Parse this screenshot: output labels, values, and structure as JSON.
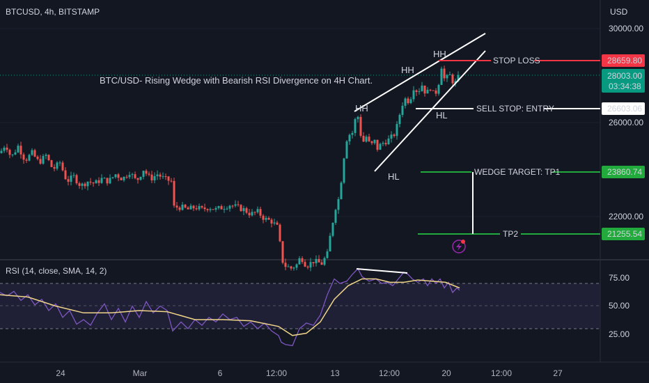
{
  "header": {
    "symbol": "BTCUSD, 4h, BITSTAMP",
    "currency": "USD"
  },
  "colors": {
    "background": "#131722",
    "up": "#26a69a",
    "down": "#ef5350",
    "rsi_line": "#7e57c2",
    "rsi_sma": "#f0d58a",
    "stop_loss": "#f23645",
    "target": "#22ab3c",
    "entry": "#ffffff",
    "last_price": "#089981",
    "axis_text": "#b2b5be"
  },
  "chart_data": [
    {
      "type": "candlestick",
      "title": "BTC/USD- Rising Wedge with Bearish RSI Divergence on 4H Chart.",
      "y_ticks": [
        "30000.00",
        "26000.00",
        "22000.00"
      ],
      "x_ticks": [
        "24",
        "Mar",
        "6",
        "12:00",
        "13",
        "12:00",
        "20",
        "12:00",
        "27"
      ],
      "close_path": [
        [
          0,
          24700
        ],
        [
          8,
          25100
        ],
        [
          16,
          24500
        ],
        [
          26,
          25000
        ],
        [
          36,
          24400
        ],
        [
          46,
          24700
        ],
        [
          56,
          24300
        ],
        [
          66,
          24600
        ],
        [
          76,
          24000
        ],
        [
          86,
          24300
        ],
        [
          96,
          23500
        ],
        [
          106,
          23700
        ],
        [
          116,
          23300
        ],
        [
          126,
          23500
        ],
        [
          136,
          23400
        ],
        [
          146,
          23600
        ],
        [
          156,
          23500
        ],
        [
          166,
          23800
        ],
        [
          176,
          23600
        ],
        [
          186,
          23900
        ],
        [
          196,
          23500
        ],
        [
          206,
          24000
        ],
        [
          216,
          23600
        ],
        [
          226,
          23800
        ],
        [
          236,
          23600
        ],
        [
          246,
          23500
        ],
        [
          250,
          22400
        ],
        [
          260,
          22400
        ],
        [
          270,
          22300
        ],
        [
          280,
          22400
        ],
        [
          290,
          22300
        ],
        [
          300,
          22400
        ],
        [
          310,
          22300
        ],
        [
          320,
          22400
        ],
        [
          330,
          22500
        ],
        [
          340,
          22400
        ],
        [
          350,
          22300
        ],
        [
          360,
          22100
        ],
        [
          370,
          22200
        ],
        [
          380,
          21900
        ],
        [
          390,
          21800
        ],
        [
          400,
          21500
        ],
        [
          404,
          20200
        ],
        [
          410,
          19900
        ],
        [
          418,
          19800
        ],
        [
          426,
          19950
        ],
        [
          432,
          20300
        ],
        [
          440,
          19900
        ],
        [
          450,
          20100
        ],
        [
          462,
          20000
        ],
        [
          470,
          20400
        ],
        [
          476,
          21500
        ],
        [
          482,
          22400
        ],
        [
          488,
          22900
        ],
        [
          492,
          24200
        ],
        [
          498,
          25300
        ],
        [
          502,
          25500
        ],
        [
          508,
          25600
        ],
        [
          512,
          26600
        ],
        [
          516,
          25900
        ],
        [
          520,
          25100
        ],
        [
          526,
          25400
        ],
        [
          532,
          25000
        ],
        [
          538,
          25200
        ],
        [
          542,
          24900
        ],
        [
          548,
          25100
        ],
        [
          554,
          25200
        ],
        [
          560,
          25300
        ],
        [
          566,
          25500
        ],
        [
          572,
          26000
        ],
        [
          576,
          26700
        ],
        [
          582,
          27000
        ],
        [
          588,
          26900
        ],
        [
          594,
          27500
        ],
        [
          600,
          27300
        ],
        [
          606,
          27600
        ],
        [
          612,
          27200
        ],
        [
          618,
          27500
        ],
        [
          624,
          27100
        ],
        [
          630,
          27700
        ],
        [
          634,
          28400
        ],
        [
          640,
          27600
        ],
        [
          644,
          28200
        ],
        [
          648,
          27800
        ],
        [
          654,
          27700
        ],
        [
          660,
          28003
        ]
      ],
      "overlay_labels": {
        "hh": "HH",
        "hl": "HL",
        "stop_loss": "STOP LOSS",
        "entry": "SELL STOP: ENTRY",
        "tp1": "WEDGE TARGET: TP1",
        "tp2": "TP2"
      },
      "levels": {
        "stop_loss": {
          "value": 28659.8,
          "label": "28659.80"
        },
        "entry": {
          "value": 26603.06,
          "label": "26603.06"
        },
        "tp1": {
          "value": 23860.74,
          "label": "23860.74"
        },
        "tp2": {
          "value": 21255.54,
          "label": "21255.54"
        },
        "last": {
          "value": 28003,
          "label": "28003.00",
          "countdown": "03:34:38"
        }
      }
    },
    {
      "type": "line",
      "title": "RSI (14, close, SMA, 14, 2)",
      "y_ticks": [
        "75.00",
        "50.00",
        "25.00"
      ],
      "ylim": [
        10,
        90
      ],
      "bands": [
        30,
        50,
        70
      ],
      "series": [
        {
          "values": [
            [
              0,
              62
            ],
            [
              10,
              59
            ],
            [
              20,
              63
            ],
            [
              30,
              55
            ],
            [
              40,
              60
            ],
            [
              50,
              51
            ],
            [
              60,
              56
            ],
            [
              70,
              46
            ],
            [
              80,
              52
            ],
            [
              90,
              40
            ],
            [
              100,
              46
            ],
            [
              110,
              34
            ],
            [
              120,
              38
            ],
            [
              130,
              33
            ],
            [
              140,
              44
            ],
            [
              150,
              52
            ],
            [
              160,
              38
            ],
            [
              170,
              48
            ],
            [
              180,
              36
            ],
            [
              190,
              50
            ],
            [
              200,
              40
            ],
            [
              210,
              54
            ],
            [
              220,
              44
            ],
            [
              230,
              50
            ],
            [
              240,
              46
            ],
            [
              248,
              28
            ],
            [
              260,
              36
            ],
            [
              270,
              30
            ],
            [
              280,
              38
            ],
            [
              290,
              33
            ],
            [
              300,
              40
            ],
            [
              310,
              36
            ],
            [
              320,
              43
            ],
            [
              330,
              38
            ],
            [
              340,
              40
            ],
            [
              350,
              32
            ],
            [
              360,
              36
            ],
            [
              370,
              30
            ],
            [
              380,
              35
            ],
            [
              390,
              28
            ],
            [
              400,
              24
            ],
            [
              404,
              18
            ],
            [
              410,
              16
            ],
            [
              420,
              15
            ],
            [
              430,
              30
            ],
            [
              440,
              35
            ],
            [
              450,
              33
            ],
            [
              460,
              42
            ],
            [
              470,
              60
            ],
            [
              480,
              74
            ],
            [
              488,
              70
            ],
            [
              498,
              72
            ],
            [
              506,
              78
            ],
            [
              514,
              83
            ],
            [
              520,
              76
            ],
            [
              530,
              72
            ],
            [
              540,
              74
            ],
            [
              548,
              70
            ],
            [
              556,
              71
            ],
            [
              564,
              68
            ],
            [
              572,
              74
            ],
            [
              580,
              80
            ],
            [
              586,
              78
            ],
            [
              592,
              74
            ],
            [
              600,
              71
            ],
            [
              608,
              74
            ],
            [
              614,
              68
            ],
            [
              620,
              74
            ],
            [
              626,
              70
            ],
            [
              632,
              74
            ],
            [
              638,
              66
            ],
            [
              644,
              71
            ],
            [
              650,
              62
            ],
            [
              656,
              66
            ],
            [
              660,
              64
            ]
          ]
        },
        {
          "values": [
            [
              0,
              60
            ],
            [
              40,
              58
            ],
            [
              80,
              50
            ],
            [
              120,
              44
            ],
            [
              160,
              44
            ],
            [
              200,
              46
            ],
            [
              240,
              45
            ],
            [
              280,
              38
            ],
            [
              320,
              38
            ],
            [
              360,
              37
            ],
            [
              400,
              32
            ],
            [
              420,
              24
            ],
            [
              440,
              26
            ],
            [
              460,
              36
            ],
            [
              480,
              56
            ],
            [
              500,
              68
            ],
            [
              520,
              74
            ],
            [
              540,
              74
            ],
            [
              560,
              71
            ],
            [
              580,
              71
            ],
            [
              600,
              73
            ],
            [
              620,
              72
            ],
            [
              640,
              71
            ],
            [
              660,
              66
            ]
          ]
        }
      ]
    }
  ]
}
